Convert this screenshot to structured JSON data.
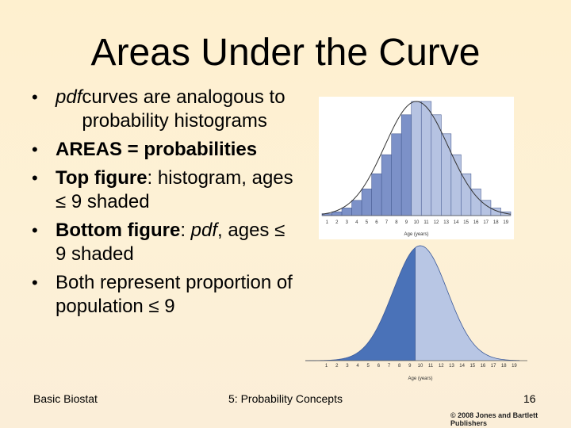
{
  "slide": {
    "title": "Areas Under the Curve",
    "bullets": [
      {
        "parts": [
          {
            "text": "pdf",
            "style": "italic"
          },
          {
            "text": " curves are analogous to probability histograms"
          }
        ]
      },
      {
        "parts": [
          {
            "text": "AREAS = probabilities",
            "style": "bold"
          }
        ]
      },
      {
        "parts": [
          {
            "text": "Top figure",
            "style": "bold"
          },
          {
            "text": ": histogram, ages ≤ 9 shaded"
          }
        ]
      },
      {
        "parts": [
          {
            "text": "Bottom figure",
            "style": "bold"
          },
          {
            "text": ": "
          },
          {
            "text": "pdf",
            "style": "italic"
          },
          {
            "text": ", ages ≤ 9 shaded"
          }
        ]
      },
      {
        "parts": [
          {
            "text": "Both represent proportion of population ≤ 9"
          }
        ]
      }
    ],
    "footer": {
      "left": "Basic Biostat",
      "center": "5: Probability Concepts",
      "page": "16"
    },
    "copyright": "© 2008 Jones and Bartlett Publishers"
  },
  "chart_data": [
    {
      "type": "bar",
      "categories": [
        "1",
        "2",
        "3",
        "4",
        "5",
        "6",
        "7",
        "8",
        "9",
        "10",
        "11",
        "12",
        "13",
        "14",
        "15",
        "16",
        "17",
        "18",
        "19"
      ],
      "values": [
        1,
        2,
        4,
        8,
        14,
        22,
        32,
        43,
        53,
        60,
        60,
        53,
        43,
        32,
        22,
        14,
        8,
        4,
        2
      ],
      "shaded_up_to": "9",
      "xlabel": "Age (years)",
      "colors": {
        "shaded": "#7c91c8",
        "unshaded": "#b6c3e2",
        "curve": "#333333"
      }
    },
    {
      "type": "area",
      "x": [
        1,
        2,
        3,
        4,
        5,
        6,
        7,
        8,
        9,
        10,
        11,
        12,
        13,
        14,
        15,
        16,
        17,
        18,
        19
      ],
      "mean": 10,
      "shaded_up_to": 9,
      "xlabel": "Age (years)",
      "colors": {
        "shaded": "#4a72b8",
        "unshaded": "#b8c6e4"
      }
    }
  ]
}
